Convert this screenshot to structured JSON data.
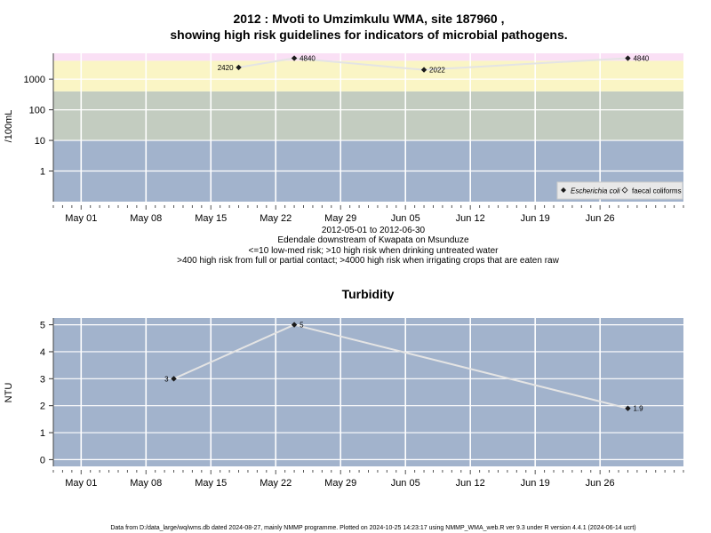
{
  "chart_data": [
    {
      "type": "line",
      "title_line1": "2012 : Mvoti to Umzimkulu WMA, site 187960 ,",
      "title_line2": "showing high risk guidelines for indicators of microbial pathogens.",
      "ylabel": "/100mL",
      "yscale": "log",
      "ylim": [
        0.1,
        7000
      ],
      "yticks": [
        "1",
        "10",
        "100",
        "1000"
      ],
      "bands": [
        {
          "from": 0.1,
          "to": 10,
          "color": "#a2b3cc"
        },
        {
          "from": 10,
          "to": 400,
          "color": "#c3ccc0"
        },
        {
          "from": 400,
          "to": 4000,
          "color": "#faf5c5"
        },
        {
          "from": 4000,
          "to": 7000,
          "color": "#fae0f5"
        }
      ],
      "x_ticks": [
        "May 01",
        "May 08",
        "May 15",
        "May 22",
        "May 29",
        "Jun 05",
        "Jun 12",
        "Jun 19",
        "Jun 26"
      ],
      "x_tick_dates": [
        "2012-05-01",
        "2012-05-08",
        "2012-05-15",
        "2012-05-22",
        "2012-05-29",
        "2012-06-05",
        "2012-06-12",
        "2012-06-19",
        "2012-06-26"
      ],
      "xlim": [
        "2012-04-28",
        "2012-07-05"
      ],
      "series": [
        {
          "name": "Escherichia coli",
          "marker": "filled-diamond",
          "points": [
            {
              "x": "2012-05-18",
              "y": 2420,
              "label": "2420"
            },
            {
              "x": "2012-05-24",
              "y": 4840,
              "label": "4840"
            },
            {
              "x": "2012-06-07",
              "y": 2022,
              "label": "2022"
            },
            {
              "x": "2012-06-29",
              "y": 4840,
              "label": "4840"
            }
          ]
        },
        {
          "name": "faecal coliforms",
          "marker": "open-diamond",
          "points": []
        }
      ],
      "legend_position": "bottom-right",
      "grid": true
    },
    {
      "type": "line",
      "title": "Turbidity",
      "ylabel": "NTU",
      "ylim": [
        -0.25,
        5.25
      ],
      "yticks": [
        "0",
        "1",
        "2",
        "3",
        "4",
        "5"
      ],
      "x_ticks": [
        "May 01",
        "May 08",
        "May 15",
        "May 22",
        "May 29",
        "Jun 05",
        "Jun 12",
        "Jun 19",
        "Jun 26"
      ],
      "x_tick_dates": [
        "2012-05-01",
        "2012-05-08",
        "2012-05-15",
        "2012-05-22",
        "2012-05-29",
        "2012-06-05",
        "2012-06-12",
        "2012-06-19",
        "2012-06-26"
      ],
      "xlim": [
        "2012-04-28",
        "2012-07-05"
      ],
      "background": "#a2b3cc",
      "series": [
        {
          "marker": "filled-diamond",
          "points": [
            {
              "x": "2012-05-11",
              "y": 3,
              "label": "3"
            },
            {
              "x": "2012-05-24",
              "y": 5,
              "label": "5"
            },
            {
              "x": "2012-06-29",
              "y": 1.9,
              "label": "1.9"
            }
          ]
        }
      ],
      "grid": true
    }
  ],
  "middle_text": {
    "date_range": "2012-05-01 to 2012-06-30",
    "site": "Edendale downstream of Kwapata on Msunduze",
    "risk_line1": "<=10 low-med risk; >10 high risk when drinking untreated water",
    "risk_line2": ">400 high risk from full or partial contact; >4000 high risk when irrigating crops that are eaten raw"
  },
  "footer": "Data from D:/data_large/wq/wms.db dated 2024-08-27, mainly NMMP programme. Plotted on 2024-10-25 14:23:17 using NMMP_WMA_web.R ver 9.3 under R version 4.4.1 (2024-06-14 ucrt)"
}
